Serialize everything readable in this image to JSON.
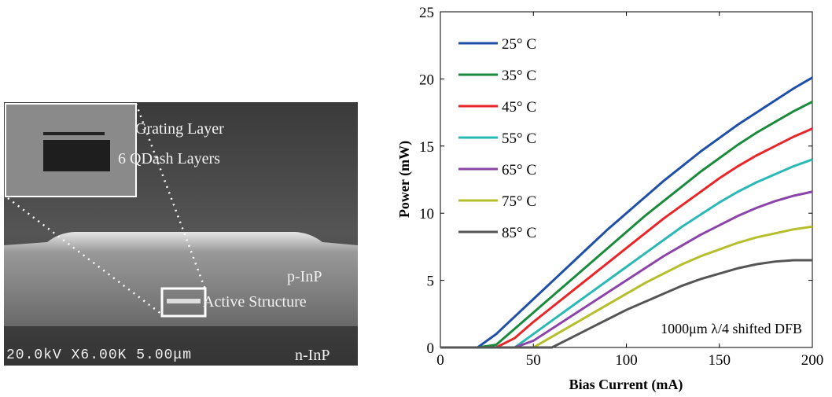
{
  "figure_labels": {
    "grating": "Grating Layer",
    "qdash": "6 QDash Layers",
    "pinp": "p-InP",
    "active": "Active Structure",
    "ninp": "n-InP",
    "scale": "20.0kV X6.00K 5.00μm"
  },
  "chart_data": {
    "type": "line",
    "xlabel": "Bias Current (mA)",
    "ylabel": "Power (mW)",
    "annotation": "1000μm λ/4 shifted DFB",
    "xlim": [
      0,
      200
    ],
    "ylim": [
      0,
      25
    ],
    "xticks": [
      0,
      50,
      100,
      150,
      200
    ],
    "yticks": [
      0,
      5,
      10,
      15,
      20,
      25
    ],
    "legend": "upper left",
    "x": [
      0,
      10,
      20,
      30,
      40,
      50,
      60,
      70,
      80,
      90,
      100,
      110,
      120,
      130,
      140,
      150,
      160,
      170,
      180,
      190,
      200
    ],
    "series": [
      {
        "name": "25° C",
        "color": "#1f4fa8",
        "values": [
          0,
          0,
          0,
          1.0,
          2.3,
          3.6,
          4.9,
          6.2,
          7.5,
          8.8,
          10.0,
          11.2,
          12.4,
          13.5,
          14.6,
          15.6,
          16.6,
          17.5,
          18.4,
          19.3,
          20.1
        ]
      },
      {
        "name": "35° C",
        "color": "#1a8a3c",
        "values": [
          0,
          0,
          0,
          0.2,
          1.4,
          2.6,
          3.8,
          5.0,
          6.2,
          7.4,
          8.6,
          9.8,
          10.9,
          12.0,
          13.1,
          14.1,
          15.1,
          16.0,
          16.8,
          17.6,
          18.3
        ]
      },
      {
        "name": "45° C",
        "color": "#e8262a",
        "values": [
          0,
          0,
          0,
          0,
          0.7,
          1.9,
          3.0,
          4.1,
          5.2,
          6.3,
          7.4,
          8.5,
          9.6,
          10.6,
          11.6,
          12.6,
          13.5,
          14.3,
          15.0,
          15.7,
          16.3
        ]
      },
      {
        "name": "55° C",
        "color": "#2ab9b5",
        "values": [
          0,
          0,
          0,
          0,
          0,
          1.0,
          2.0,
          3.0,
          4.0,
          5.0,
          6.0,
          7.0,
          8.0,
          9.0,
          9.9,
          10.8,
          11.6,
          12.3,
          12.9,
          13.5,
          14.0
        ]
      },
      {
        "name": "65° C",
        "color": "#8b44a8",
        "values": [
          0,
          0,
          0,
          0,
          0,
          0.5,
          1.4,
          2.3,
          3.2,
          4.1,
          5.0,
          5.9,
          6.8,
          7.6,
          8.4,
          9.1,
          9.8,
          10.4,
          10.9,
          11.3,
          11.6
        ]
      },
      {
        "name": "75° C",
        "color": "#b5bf2c",
        "values": [
          0,
          0,
          0,
          0,
          0,
          0,
          0.8,
          1.6,
          2.4,
          3.2,
          4.0,
          4.8,
          5.5,
          6.2,
          6.8,
          7.3,
          7.8,
          8.2,
          8.5,
          8.8,
          9.0
        ]
      },
      {
        "name": "85° C",
        "color": "#555555",
        "values": [
          0,
          0,
          0,
          0,
          0,
          0,
          0,
          0.7,
          1.4,
          2.1,
          2.8,
          3.4,
          4.0,
          4.6,
          5.1,
          5.5,
          5.9,
          6.2,
          6.4,
          6.5,
          6.5
        ]
      }
    ]
  }
}
